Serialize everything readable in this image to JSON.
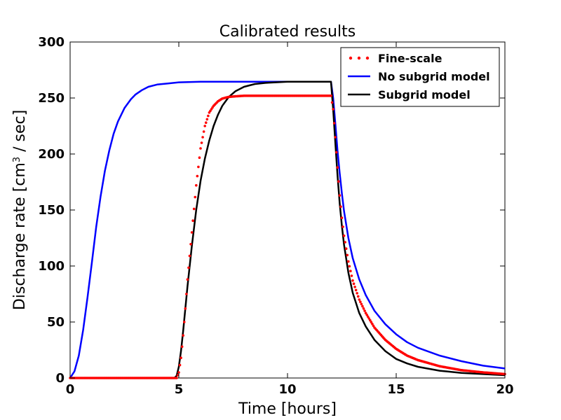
{
  "chart_data": {
    "type": "line",
    "title": "Calibrated results",
    "xlabel": "Time [hours]",
    "ylabel_prefix": "Discharge rate [cm",
    "ylabel_sup": "3",
    "ylabel_suffix": " / sec]",
    "xlim": [
      0,
      20
    ],
    "ylim": [
      0,
      300
    ],
    "xticks": [
      0,
      5,
      10,
      15,
      20
    ],
    "yticks": [
      0,
      50,
      100,
      150,
      200,
      250,
      300
    ],
    "grid": false,
    "legend_position": "top-right",
    "series": [
      {
        "name": "Fine-scale",
        "style": "dotted",
        "color": "#ff0000",
        "x": [
          0,
          1,
          2,
          3,
          4,
          4.6,
          4.9,
          5.0,
          5.1,
          5.2,
          5.3,
          5.4,
          5.6,
          5.8,
          6.0,
          6.2,
          6.4,
          6.6,
          6.8,
          7.0,
          7.3,
          7.6,
          8.0,
          8.5,
          9,
          10,
          11,
          12.0,
          12.1,
          12.2,
          12.3,
          12.4,
          12.5,
          12.6,
          12.8,
          13.0,
          13.3,
          13.6,
          14.0,
          14.5,
          15.0,
          15.5,
          16.0,
          17.0,
          18.0,
          19.0,
          20.0
        ],
        "y": [
          0,
          0,
          0,
          0,
          0,
          0,
          0,
          5,
          18,
          38,
          62,
          88,
          130,
          172,
          205,
          225,
          237,
          243,
          247,
          249.5,
          251,
          251.5,
          252,
          252,
          252,
          252,
          252,
          252,
          240,
          215,
          188,
          163,
          143,
          127,
          104,
          87,
          70,
          58,
          45,
          34,
          26,
          20,
          16,
          10.5,
          7,
          5,
          3.5
        ]
      },
      {
        "name": "No subgrid model",
        "style": "solid",
        "color": "#0000ff",
        "x": [
          0,
          0.2,
          0.4,
          0.6,
          0.8,
          1.0,
          1.2,
          1.4,
          1.6,
          1.8,
          2.0,
          2.2,
          2.5,
          2.8,
          3.0,
          3.3,
          3.6,
          4.0,
          4.5,
          5.0,
          6.0,
          7.0,
          8.0,
          10.0,
          11.0,
          12.0,
          12.1,
          12.2,
          12.3,
          12.4,
          12.5,
          12.6,
          12.8,
          13.0,
          13.3,
          13.6,
          14.0,
          14.5,
          15.0,
          15.5,
          16.0,
          17.0,
          18.0,
          19.0,
          20.0
        ],
        "y": [
          0,
          6,
          20,
          43,
          72,
          103,
          135,
          162,
          185,
          203,
          218,
          229,
          241,
          249,
          253,
          257,
          260,
          262,
          263,
          264,
          264.5,
          264.5,
          264.5,
          264.5,
          264.5,
          264.5,
          250,
          227,
          203,
          183,
          165,
          149,
          125,
          107,
          88,
          74,
          60,
          48,
          39,
          32,
          27,
          20,
          15,
          11,
          8.5
        ]
      },
      {
        "name": "Subgrid model",
        "style": "solid",
        "color": "#000000",
        "x": [
          0,
          1,
          2,
          3,
          4,
          4.6,
          4.8,
          4.9,
          5.0,
          5.1,
          5.2,
          5.3,
          5.4,
          5.6,
          5.8,
          6.0,
          6.2,
          6.4,
          6.6,
          6.8,
          7.0,
          7.3,
          7.6,
          8.0,
          8.5,
          9.0,
          10.0,
          11.0,
          12.0,
          12.1,
          12.2,
          12.3,
          12.4,
          12.5,
          12.6,
          12.8,
          13.0,
          13.3,
          13.6,
          14.0,
          14.5,
          15.0,
          15.5,
          16.0,
          17.0,
          18.0,
          19.0,
          20.0
        ],
        "y": [
          0,
          0,
          0,
          0,
          0,
          0,
          0,
          2,
          10,
          24,
          42,
          62,
          82,
          118,
          150,
          176,
          196,
          212,
          225,
          235,
          243,
          251,
          256,
          260,
          262.5,
          263.5,
          264.5,
          264.5,
          264.5,
          240,
          210,
          181,
          156,
          136,
          119,
          94,
          76,
          58,
          46,
          34,
          24,
          17,
          13,
          10,
          6.5,
          4.5,
          3.5,
          2.5
        ]
      }
    ]
  }
}
